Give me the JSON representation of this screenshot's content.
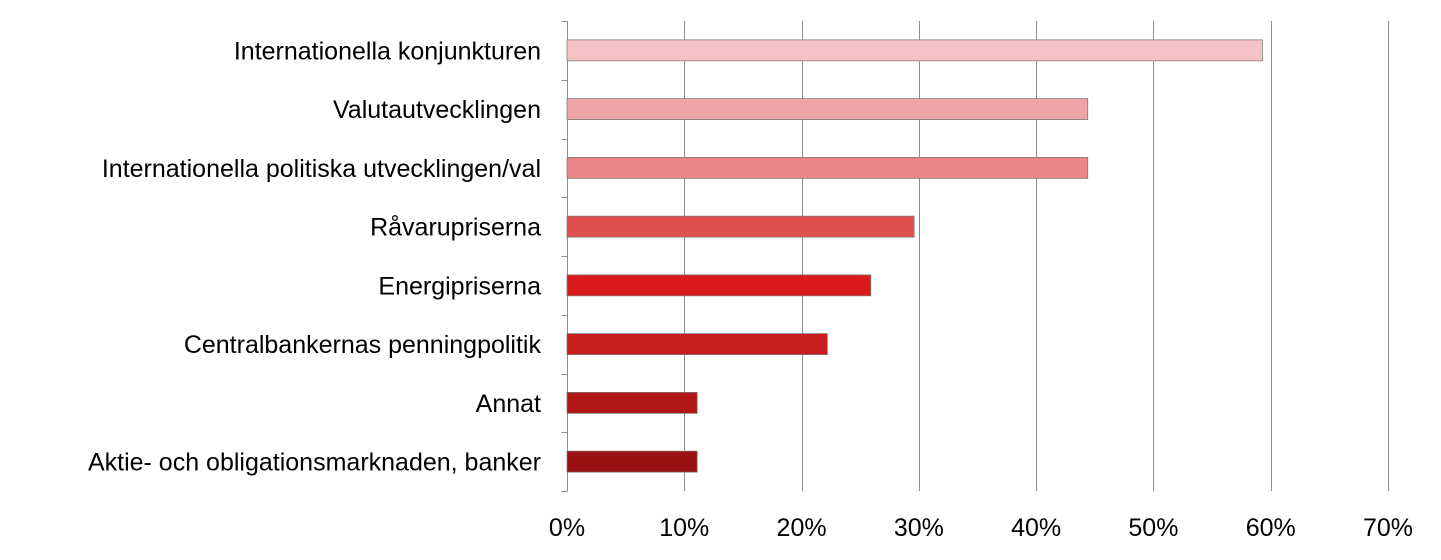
{
  "chart_data": {
    "type": "bar",
    "orientation": "horizontal",
    "categories": [
      "Internationella konjunkturen",
      "Valutautvecklingen",
      "Internationella politiska utvecklingen/val",
      "Råvarupriserna",
      "Energipriserna",
      "Centralbankernas penningpolitik",
      "Annat",
      "Aktie- och obligationsmarknaden, banker"
    ],
    "values": [
      59.3,
      44.4,
      44.4,
      29.6,
      25.9,
      22.2,
      11.1,
      11.1
    ],
    "value_unit": "percent",
    "xlim": [
      0,
      70
    ],
    "x_ticks": [
      0,
      10,
      20,
      30,
      40,
      50,
      60,
      70
    ],
    "x_tick_labels": [
      "0%",
      "10%",
      "20%",
      "30%",
      "40%",
      "50%",
      "60%",
      "70%"
    ],
    "grid": "vertical",
    "legend": "none",
    "colors": [
      "#f4c2c4",
      "#eea5a8",
      "#ea8587",
      "#e24f50",
      "#da1a1c",
      "#c91c1c",
      "#b01616",
      "#9a1212"
    ],
    "title": "",
    "xlabel": "",
    "ylabel": ""
  }
}
